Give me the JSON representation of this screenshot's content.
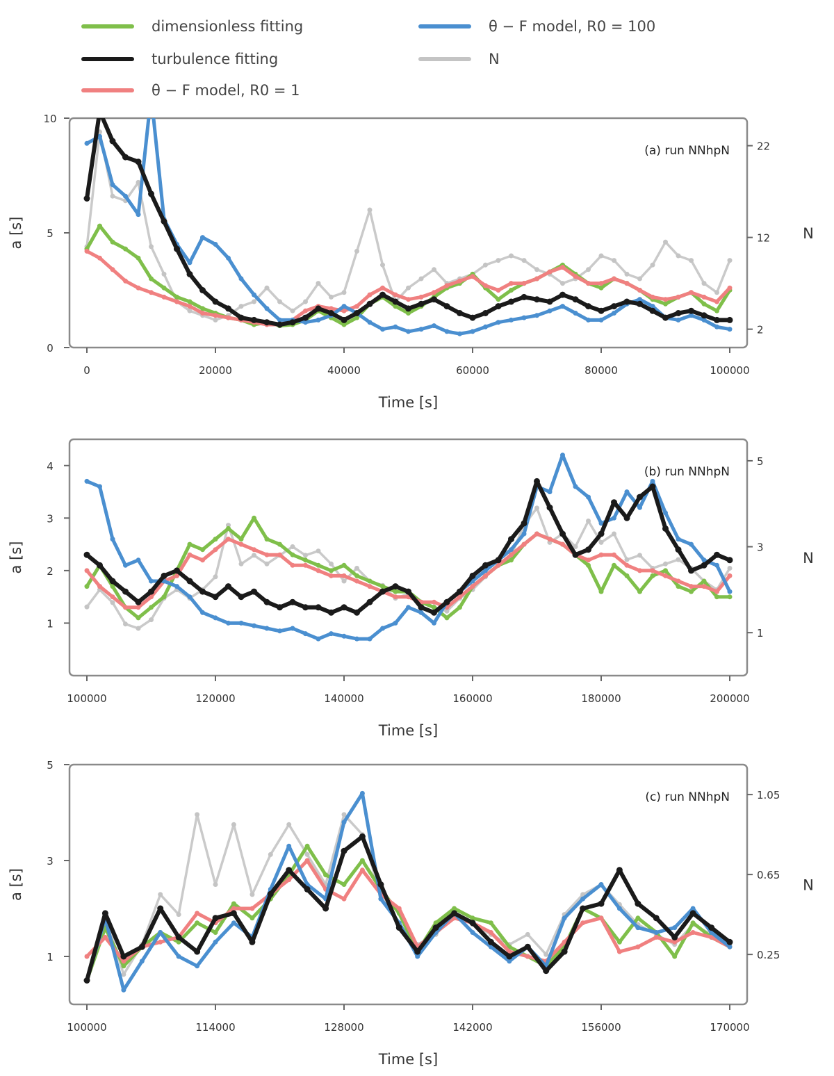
{
  "colors": {
    "green": "#7fbf4a",
    "black": "#1a1a1a",
    "red": "#f08080",
    "blue": "#4a8fd0",
    "grey": "#c4c4c4"
  },
  "legend": {
    "entries": [
      {
        "key": "green",
        "label": "dimensionless fitting"
      },
      {
        "key": "black",
        "label": "turbulence fitting"
      },
      {
        "key": "red",
        "label": "θ − F model, R0 = 1"
      },
      {
        "key": "blue",
        "label": "θ − F model, R0 = 100"
      },
      {
        "key": "grey",
        "label": "N"
      }
    ]
  },
  "chart_data": [
    {
      "type": "line",
      "panel_label": "(a) run NNhpN",
      "xlabel": "Time [s]",
      "ylabel": "a [s]",
      "y2label": "N",
      "xlim": [
        0,
        100000
      ],
      "ylim": [
        0,
        10
      ],
      "y2lim": [
        0,
        25
      ],
      "xticks": [
        0,
        20000,
        40000,
        60000,
        80000,
        100000
      ],
      "xticklabels": [
        "0",
        "20000",
        "40000",
        "60000",
        "80000",
        "100000"
      ],
      "yticks": [
        0,
        5,
        10
      ],
      "yticklabels": [
        "0",
        "5",
        "10"
      ],
      "y2ticks": [
        2,
        12,
        22
      ],
      "y2ticklabels": [
        "2",
        "12",
        "22"
      ],
      "x": [
        0,
        2000,
        4000,
        6000,
        8000,
        10000,
        12000,
        14000,
        16000,
        18000,
        20000,
        22000,
        24000,
        26000,
        28000,
        30000,
        32000,
        34000,
        36000,
        38000,
        40000,
        42000,
        44000,
        46000,
        48000,
        50000,
        52000,
        54000,
        56000,
        58000,
        60000,
        62000,
        64000,
        66000,
        68000,
        70000,
        72000,
        74000,
        76000,
        78000,
        80000,
        82000,
        84000,
        86000,
        88000,
        90000,
        92000,
        94000,
        96000,
        98000,
        100000
      ],
      "series": [
        {
          "key": "green",
          "values": [
            4.3,
            5.3,
            4.6,
            4.3,
            3.9,
            3.0,
            2.6,
            2.2,
            2.0,
            1.7,
            1.5,
            1.3,
            1.2,
            1.0,
            1.1,
            0.95,
            1.0,
            1.2,
            1.6,
            1.3,
            1.0,
            1.3,
            1.9,
            2.2,
            1.8,
            1.5,
            1.8,
            2.2,
            2.6,
            2.8,
            3.2,
            2.6,
            2.1,
            2.5,
            2.8,
            3.0,
            3.3,
            3.6,
            3.2,
            2.8,
            2.6,
            3.0,
            2.8,
            2.5,
            2.1,
            1.9,
            2.2,
            2.4,
            1.9,
            1.6,
            2.5
          ]
        },
        {
          "key": "black",
          "values": [
            6.5,
            10.3,
            9.0,
            8.3,
            8.1,
            6.7,
            5.5,
            4.3,
            3.2,
            2.5,
            2.0,
            1.7,
            1.3,
            1.2,
            1.1,
            1.0,
            1.1,
            1.3,
            1.7,
            1.5,
            1.2,
            1.5,
            1.9,
            2.3,
            2.0,
            1.7,
            1.9,
            2.1,
            1.8,
            1.5,
            1.3,
            1.5,
            1.8,
            2.0,
            2.2,
            2.1,
            2.0,
            2.3,
            2.1,
            1.8,
            1.6,
            1.8,
            2.0,
            1.9,
            1.6,
            1.3,
            1.5,
            1.6,
            1.4,
            1.2,
            1.2
          ]
        },
        {
          "key": "red",
          "values": [
            4.2,
            3.9,
            3.4,
            2.9,
            2.6,
            2.4,
            2.2,
            2.0,
            1.8,
            1.5,
            1.4,
            1.3,
            1.2,
            1.1,
            1.0,
            1.0,
            1.2,
            1.6,
            1.8,
            1.7,
            1.6,
            1.8,
            2.3,
            2.6,
            2.3,
            2.1,
            2.2,
            2.4,
            2.7,
            2.9,
            3.1,
            2.7,
            2.5,
            2.8,
            2.8,
            3.0,
            3.3,
            3.5,
            3.1,
            2.8,
            2.8,
            3.0,
            2.8,
            2.5,
            2.2,
            2.1,
            2.2,
            2.4,
            2.2,
            2.0,
            2.6
          ]
        },
        {
          "key": "blue",
          "values": [
            8.9,
            9.2,
            7.1,
            6.6,
            5.8,
            11.0,
            5.6,
            4.5,
            3.7,
            4.8,
            4.5,
            3.9,
            3.0,
            2.3,
            1.7,
            1.2,
            1.2,
            1.1,
            1.2,
            1.4,
            1.8,
            1.5,
            1.1,
            0.8,
            0.9,
            0.7,
            0.8,
            0.95,
            0.7,
            0.6,
            0.7,
            0.9,
            1.1,
            1.2,
            1.3,
            1.4,
            1.6,
            1.8,
            1.5,
            1.2,
            1.2,
            1.5,
            1.9,
            2.1,
            1.8,
            1.3,
            1.2,
            1.4,
            1.2,
            0.9,
            0.8
          ]
        },
        {
          "key": "grey",
          "axis": "right",
          "values": [
            11.0,
            23.5,
            16.5,
            16.0,
            18.0,
            11.0,
            8.0,
            5.0,
            4.0,
            3.5,
            3.0,
            3.5,
            4.5,
            5.0,
            6.5,
            5.0,
            4.0,
            5.0,
            7.0,
            5.5,
            6.0,
            10.5,
            15.0,
            9.0,
            5.0,
            6.5,
            7.5,
            8.5,
            7.0,
            7.5,
            8.0,
            9.0,
            9.5,
            10.0,
            9.5,
            8.5,
            8.0,
            7.0,
            7.5,
            8.5,
            10.0,
            9.5,
            8.0,
            7.5,
            9.0,
            11.5,
            10.0,
            9.5,
            7.0,
            6.0,
            9.5
          ]
        }
      ]
    },
    {
      "type": "line",
      "panel_label": "(b) run NNhpN",
      "xlabel": "Time [s]",
      "ylabel": "a [s]",
      "y2label": "N",
      "xlim": [
        100000,
        200000
      ],
      "ylim": [
        0,
        4.5
      ],
      "y2lim": [
        0,
        5.5
      ],
      "xticks": [
        100000,
        120000,
        140000,
        160000,
        180000,
        200000
      ],
      "xticklabels": [
        "100000",
        "120000",
        "140000",
        "160000",
        "180000",
        "200000"
      ],
      "yticks": [
        1,
        2,
        3,
        4
      ],
      "yticklabels": [
        "1",
        "2",
        "3",
        "4"
      ],
      "y2ticks": [
        1,
        3,
        5
      ],
      "y2ticklabels": [
        "1",
        "3",
        "5"
      ],
      "x": [
        100000,
        102000,
        104000,
        106000,
        108000,
        110000,
        112000,
        114000,
        116000,
        118000,
        120000,
        122000,
        124000,
        126000,
        128000,
        130000,
        132000,
        134000,
        136000,
        138000,
        140000,
        142000,
        144000,
        146000,
        148000,
        150000,
        152000,
        154000,
        156000,
        158000,
        160000,
        162000,
        164000,
        166000,
        168000,
        170000,
        172000,
        174000,
        176000,
        178000,
        180000,
        182000,
        184000,
        186000,
        188000,
        190000,
        192000,
        194000,
        196000,
        198000,
        200000
      ],
      "series": [
        {
          "key": "green",
          "values": [
            1.7,
            2.1,
            1.7,
            1.3,
            1.1,
            1.3,
            1.5,
            2.0,
            2.5,
            2.4,
            2.6,
            2.8,
            2.6,
            3.0,
            2.6,
            2.5,
            2.3,
            2.2,
            2.1,
            2.0,
            2.1,
            1.9,
            1.8,
            1.7,
            1.6,
            1.6,
            1.4,
            1.3,
            1.1,
            1.3,
            1.7,
            1.9,
            2.1,
            2.2,
            2.5,
            2.7,
            2.6,
            2.5,
            2.3,
            2.1,
            1.6,
            2.1,
            1.9,
            1.6,
            1.9,
            2.0,
            1.7,
            1.6,
            1.8,
            1.5,
            1.5
          ]
        },
        {
          "key": "black",
          "values": [
            2.3,
            2.1,
            1.8,
            1.6,
            1.4,
            1.6,
            1.9,
            2.0,
            1.8,
            1.6,
            1.5,
            1.7,
            1.5,
            1.6,
            1.4,
            1.3,
            1.4,
            1.3,
            1.3,
            1.2,
            1.3,
            1.2,
            1.4,
            1.6,
            1.7,
            1.6,
            1.3,
            1.2,
            1.4,
            1.6,
            1.9,
            2.1,
            2.2,
            2.6,
            2.9,
            3.7,
            3.2,
            2.7,
            2.3,
            2.4,
            2.7,
            3.3,
            3.0,
            3.4,
            3.6,
            2.8,
            2.4,
            2.0,
            2.1,
            2.3,
            2.2
          ]
        },
        {
          "key": "red",
          "values": [
            2.0,
            1.7,
            1.5,
            1.3,
            1.3,
            1.5,
            1.8,
            1.9,
            2.3,
            2.2,
            2.4,
            2.6,
            2.5,
            2.4,
            2.3,
            2.3,
            2.1,
            2.1,
            2.0,
            1.9,
            1.9,
            1.8,
            1.7,
            1.6,
            1.5,
            1.5,
            1.4,
            1.4,
            1.3,
            1.5,
            1.7,
            1.9,
            2.1,
            2.3,
            2.5,
            2.7,
            2.6,
            2.5,
            2.3,
            2.2,
            2.3,
            2.3,
            2.1,
            2.0,
            2.0,
            1.9,
            1.8,
            1.7,
            1.7,
            1.6,
            1.9
          ]
        },
        {
          "key": "blue",
          "values": [
            3.7,
            3.6,
            2.6,
            2.1,
            2.2,
            1.8,
            1.8,
            1.7,
            1.5,
            1.2,
            1.1,
            1.0,
            1.0,
            0.95,
            0.9,
            0.85,
            0.9,
            0.8,
            0.7,
            0.8,
            0.75,
            0.7,
            0.7,
            0.9,
            1.0,
            1.3,
            1.2,
            1.0,
            1.4,
            1.6,
            1.8,
            2.0,
            2.2,
            2.4,
            2.7,
            3.6,
            3.5,
            4.2,
            3.6,
            3.4,
            2.9,
            3.0,
            3.5,
            3.2,
            3.7,
            3.1,
            2.6,
            2.5,
            2.2,
            2.1,
            1.6
          ]
        },
        {
          "key": "grey",
          "axis": "right",
          "values": [
            1.6,
            2.0,
            1.7,
            1.2,
            1.1,
            1.3,
            1.8,
            2.0,
            1.8,
            2.0,
            2.3,
            3.5,
            2.6,
            2.8,
            2.6,
            2.8,
            3.0,
            2.8,
            2.9,
            2.6,
            2.2,
            2.5,
            2.2,
            2.1,
            1.8,
            1.9,
            1.7,
            1.6,
            1.5,
            1.8,
            2.0,
            2.3,
            2.6,
            2.8,
            3.5,
            3.9,
            3.1,
            3.3,
            3.0,
            3.6,
            3.1,
            3.3,
            2.7,
            2.8,
            2.5,
            2.6,
            2.7,
            2.5,
            2.2,
            2.0,
            2.5
          ]
        }
      ]
    },
    {
      "type": "line",
      "panel_label": "(c) run NNhpN",
      "xlabel": "Time [s]",
      "ylabel": "a [s]",
      "y2label": "N",
      "xlim": [
        100000,
        170000
      ],
      "ylim": [
        0,
        5
      ],
      "y2lim": [
        0,
        1.2
      ],
      "xticks": [
        100000,
        114000,
        128000,
        142000,
        156000,
        170000
      ],
      "xticklabels": [
        "100000",
        "114000",
        "128000",
        "142000",
        "156000",
        "170000"
      ],
      "yticks": [
        1,
        3,
        5
      ],
      "yticklabels": [
        "1",
        "3",
        "5"
      ],
      "y2ticks": [
        0.25,
        0.65,
        1.05
      ],
      "y2ticklabels": [
        "0.25",
        "0.65",
        "1.05"
      ],
      "x": [
        100000,
        102000,
        104000,
        106000,
        108000,
        110000,
        112000,
        114000,
        116000,
        118000,
        120000,
        122000,
        124000,
        126000,
        128000,
        130000,
        132000,
        134000,
        136000,
        138000,
        140000,
        142000,
        144000,
        146000,
        148000,
        150000,
        152000,
        154000,
        156000,
        158000,
        160000,
        162000,
        164000,
        166000,
        168000,
        170000
      ],
      "series": [
        {
          "key": "green",
          "values": [
            0.5,
            1.6,
            0.8,
            1.2,
            1.5,
            1.3,
            1.7,
            1.5,
            2.1,
            1.8,
            2.2,
            2.7,
            3.3,
            2.7,
            2.5,
            3.0,
            2.4,
            1.9,
            1.1,
            1.7,
            2.0,
            1.8,
            1.7,
            1.2,
            1.0,
            0.8,
            1.2,
            2.0,
            1.8,
            1.3,
            1.8,
            1.5,
            1.0,
            1.7,
            1.4,
            1.2
          ]
        },
        {
          "key": "black",
          "values": [
            0.5,
            1.9,
            1.0,
            1.2,
            2.0,
            1.4,
            1.1,
            1.8,
            1.9,
            1.3,
            2.3,
            2.8,
            2.4,
            2.0,
            3.2,
            3.5,
            2.5,
            1.6,
            1.1,
            1.6,
            1.9,
            1.7,
            1.3,
            1.0,
            1.2,
            0.7,
            1.1,
            2.0,
            2.1,
            2.8,
            2.1,
            1.8,
            1.4,
            1.9,
            1.6,
            1.3
          ]
        },
        {
          "key": "red",
          "values": [
            1.0,
            1.4,
            0.9,
            1.2,
            1.3,
            1.4,
            1.9,
            1.7,
            2.0,
            2.0,
            2.3,
            2.6,
            3.0,
            2.4,
            2.2,
            2.8,
            2.3,
            2.0,
            1.2,
            1.5,
            1.8,
            1.7,
            1.5,
            1.1,
            1.0,
            0.9,
            1.3,
            1.7,
            1.8,
            1.1,
            1.2,
            1.4,
            1.3,
            1.5,
            1.4,
            1.2
          ]
        },
        {
          "key": "blue",
          "values": [
            0.5,
            1.8,
            0.3,
            0.9,
            1.5,
            1.0,
            0.8,
            1.3,
            1.7,
            1.4,
            2.4,
            3.3,
            2.5,
            2.2,
            3.8,
            4.4,
            2.2,
            1.7,
            1.0,
            1.5,
            1.9,
            1.5,
            1.2,
            0.9,
            1.2,
            0.8,
            1.8,
            2.2,
            2.5,
            2.0,
            1.6,
            1.5,
            1.6,
            2.0,
            1.5,
            1.2
          ]
        },
        {
          "key": "grey",
          "axis": "right",
          "values": [
            0.12,
            0.45,
            0.15,
            0.3,
            0.55,
            0.45,
            0.95,
            0.6,
            0.9,
            0.55,
            0.75,
            0.9,
            0.75,
            0.6,
            0.95,
            0.85,
            0.55,
            0.4,
            0.3,
            0.35,
            0.45,
            0.4,
            0.35,
            0.3,
            0.35,
            0.25,
            0.45,
            0.55,
            0.6,
            0.5,
            0.4,
            0.35,
            0.3,
            0.4,
            0.35,
            0.3
          ]
        }
      ]
    }
  ]
}
